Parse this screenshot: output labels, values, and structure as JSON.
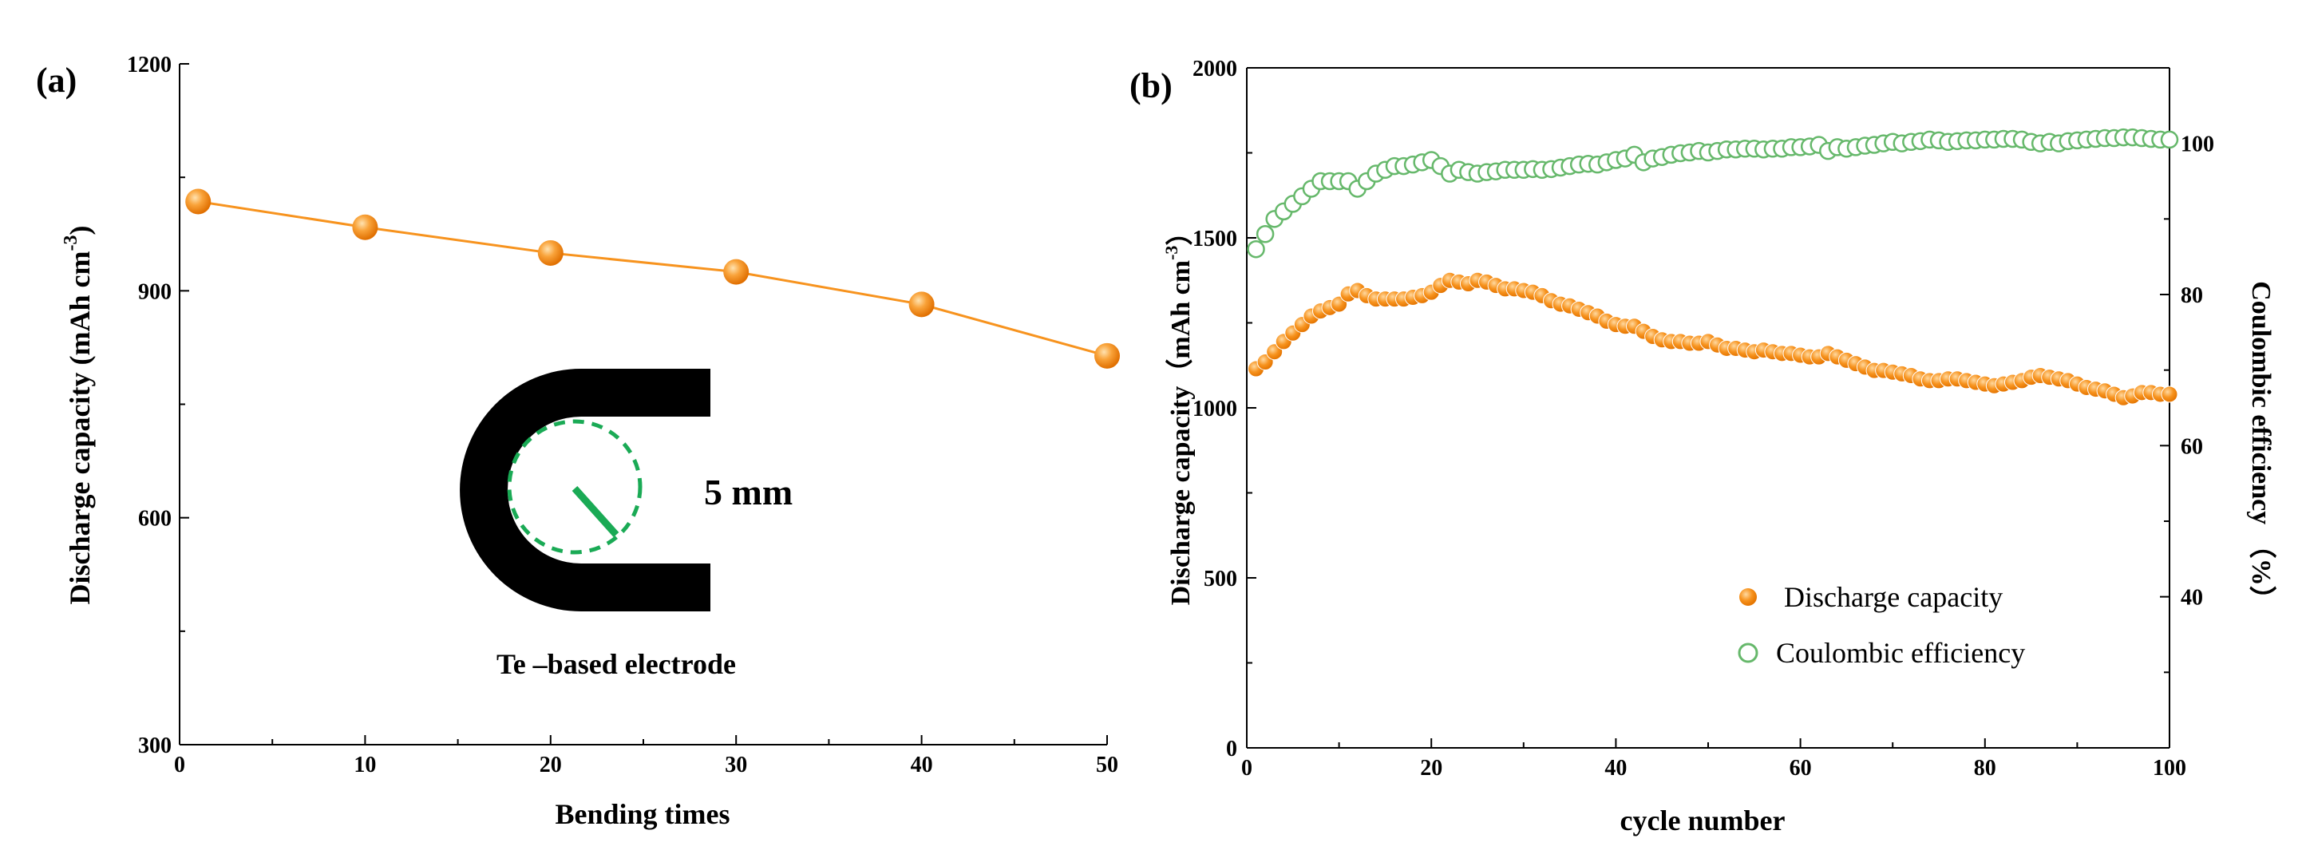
{
  "chart_data": [
    {
      "type": "line",
      "panel_label": "(a)",
      "xlabel": "Bending times",
      "ylabel_main": "Discharge  capacity (mAh cm",
      "ylabel_sup": "-3",
      "ylabel_close": ")",
      "xlim": [
        0,
        50
      ],
      "ylim": [
        300,
        1200
      ],
      "x_ticks": [
        0,
        10,
        20,
        30,
        40,
        50
      ],
      "y_ticks": [
        300,
        600,
        900,
        1200
      ],
      "series": [
        {
          "name": "Discharge capacity",
          "color": "#f7931e",
          "x": [
            1,
            10,
            20,
            30,
            40,
            50
          ],
          "y": [
            1018,
            984,
            950,
            925,
            882,
            814
          ]
        }
      ],
      "inset": {
        "radius_label": "5 mm",
        "caption": "Te –based electrode",
        "electrode_color": "#000000",
        "circle_color": "#1aaa55"
      }
    },
    {
      "type": "scatter",
      "panel_label": "(b)",
      "xlabel": "cycle number",
      "ylabel_left_main": "Discharge capacity（mAh cm",
      "ylabel_left_sup": "-3",
      "ylabel_left_close": "）",
      "ylabel_right": "Coulombic efficiency （%）",
      "xlim": [
        0,
        100
      ],
      "ylim_left": [
        0,
        2000
      ],
      "ylim_right": [
        20,
        110
      ],
      "x_ticks": [
        0,
        20,
        40,
        60,
        80,
        100
      ],
      "y_ticks_left": [
        0,
        500,
        1000,
        1500,
        2000
      ],
      "y_ticks_right": [
        40,
        60,
        80,
        100
      ],
      "series": [
        {
          "name": "Discharge capacity",
          "axis": "left",
          "color": "#f7931e",
          "marker": "filled-circle",
          "x": [
            1,
            2,
            3,
            4,
            5,
            6,
            7,
            8,
            9,
            10,
            11,
            12,
            13,
            14,
            15,
            16,
            17,
            18,
            19,
            20,
            21,
            22,
            23,
            24,
            25,
            26,
            27,
            28,
            29,
            30,
            31,
            32,
            33,
            34,
            35,
            36,
            37,
            38,
            39,
            40,
            41,
            42,
            43,
            44,
            45,
            46,
            47,
            48,
            49,
            50,
            51,
            52,
            53,
            54,
            55,
            56,
            57,
            58,
            59,
            60,
            61,
            62,
            63,
            64,
            65,
            66,
            67,
            68,
            69,
            70,
            71,
            72,
            73,
            74,
            75,
            76,
            77,
            78,
            79,
            80,
            81,
            82,
            83,
            84,
            85,
            86,
            87,
            88,
            89,
            90,
            91,
            92,
            93,
            94,
            95,
            96,
            97,
            98,
            99,
            100
          ],
          "y": [
            1115,
            1135,
            1165,
            1195,
            1220,
            1245,
            1270,
            1285,
            1295,
            1305,
            1335,
            1345,
            1330,
            1320,
            1320,
            1320,
            1320,
            1325,
            1330,
            1340,
            1360,
            1375,
            1370,
            1365,
            1375,
            1370,
            1360,
            1350,
            1350,
            1345,
            1340,
            1330,
            1315,
            1305,
            1300,
            1290,
            1280,
            1270,
            1255,
            1245,
            1240,
            1240,
            1225,
            1210,
            1200,
            1195,
            1195,
            1190,
            1190,
            1195,
            1185,
            1175,
            1175,
            1170,
            1165,
            1170,
            1165,
            1160,
            1160,
            1155,
            1150,
            1150,
            1160,
            1150,
            1140,
            1130,
            1120,
            1110,
            1110,
            1105,
            1100,
            1095,
            1085,
            1080,
            1080,
            1085,
            1085,
            1080,
            1075,
            1070,
            1065,
            1070,
            1075,
            1080,
            1090,
            1095,
            1090,
            1085,
            1080,
            1070,
            1060,
            1055,
            1050,
            1040,
            1030,
            1035,
            1045,
            1045,
            1040,
            1040
          ]
        },
        {
          "name": "Coulombic efficiency",
          "axis": "right",
          "color": "#66b86b",
          "marker": "open-circle",
          "x": [
            1,
            2,
            3,
            4,
            5,
            6,
            7,
            8,
            9,
            10,
            11,
            12,
            13,
            14,
            15,
            16,
            17,
            18,
            19,
            20,
            21,
            22,
            23,
            24,
            25,
            26,
            27,
            28,
            29,
            30,
            31,
            32,
            33,
            34,
            35,
            36,
            37,
            38,
            39,
            40,
            41,
            42,
            43,
            44,
            45,
            46,
            47,
            48,
            49,
            50,
            51,
            52,
            53,
            54,
            55,
            56,
            57,
            58,
            59,
            60,
            61,
            62,
            63,
            64,
            65,
            66,
            67,
            68,
            69,
            70,
            71,
            72,
            73,
            74,
            75,
            76,
            77,
            78,
            79,
            80,
            81,
            82,
            83,
            84,
            85,
            86,
            87,
            88,
            89,
            90,
            91,
            92,
            93,
            94,
            95,
            96,
            97,
            98,
            99,
            100
          ],
          "y": [
            86,
            88,
            90,
            91,
            92,
            93,
            94,
            95,
            95,
            95,
            95,
            94,
            95,
            96,
            96.5,
            97,
            97,
            97.2,
            97.5,
            97.8,
            97,
            96,
            96.5,
            96.2,
            96,
            96.2,
            96.3,
            96.5,
            96.5,
            96.5,
            96.6,
            96.5,
            96.6,
            96.8,
            97,
            97.2,
            97.3,
            97.2,
            97.5,
            97.8,
            98,
            98.5,
            97.5,
            98,
            98.2,
            98.5,
            98.7,
            98.8,
            99,
            98.8,
            99,
            99.2,
            99.2,
            99.3,
            99.3,
            99.2,
            99.3,
            99.3,
            99.5,
            99.5,
            99.6,
            99.8,
            99,
            99.5,
            99.3,
            99.5,
            99.7,
            99.8,
            100,
            100.2,
            100,
            100.2,
            100.3,
            100.5,
            100.4,
            100.2,
            100.3,
            100.4,
            100.4,
            100.5,
            100.5,
            100.6,
            100.6,
            100.5,
            100.2,
            100,
            100.2,
            100,
            100.3,
            100.4,
            100.5,
            100.6,
            100.7,
            100.7,
            100.8,
            100.8,
            100.7,
            100.6,
            100.5,
            100.5
          ]
        }
      ]
    }
  ]
}
